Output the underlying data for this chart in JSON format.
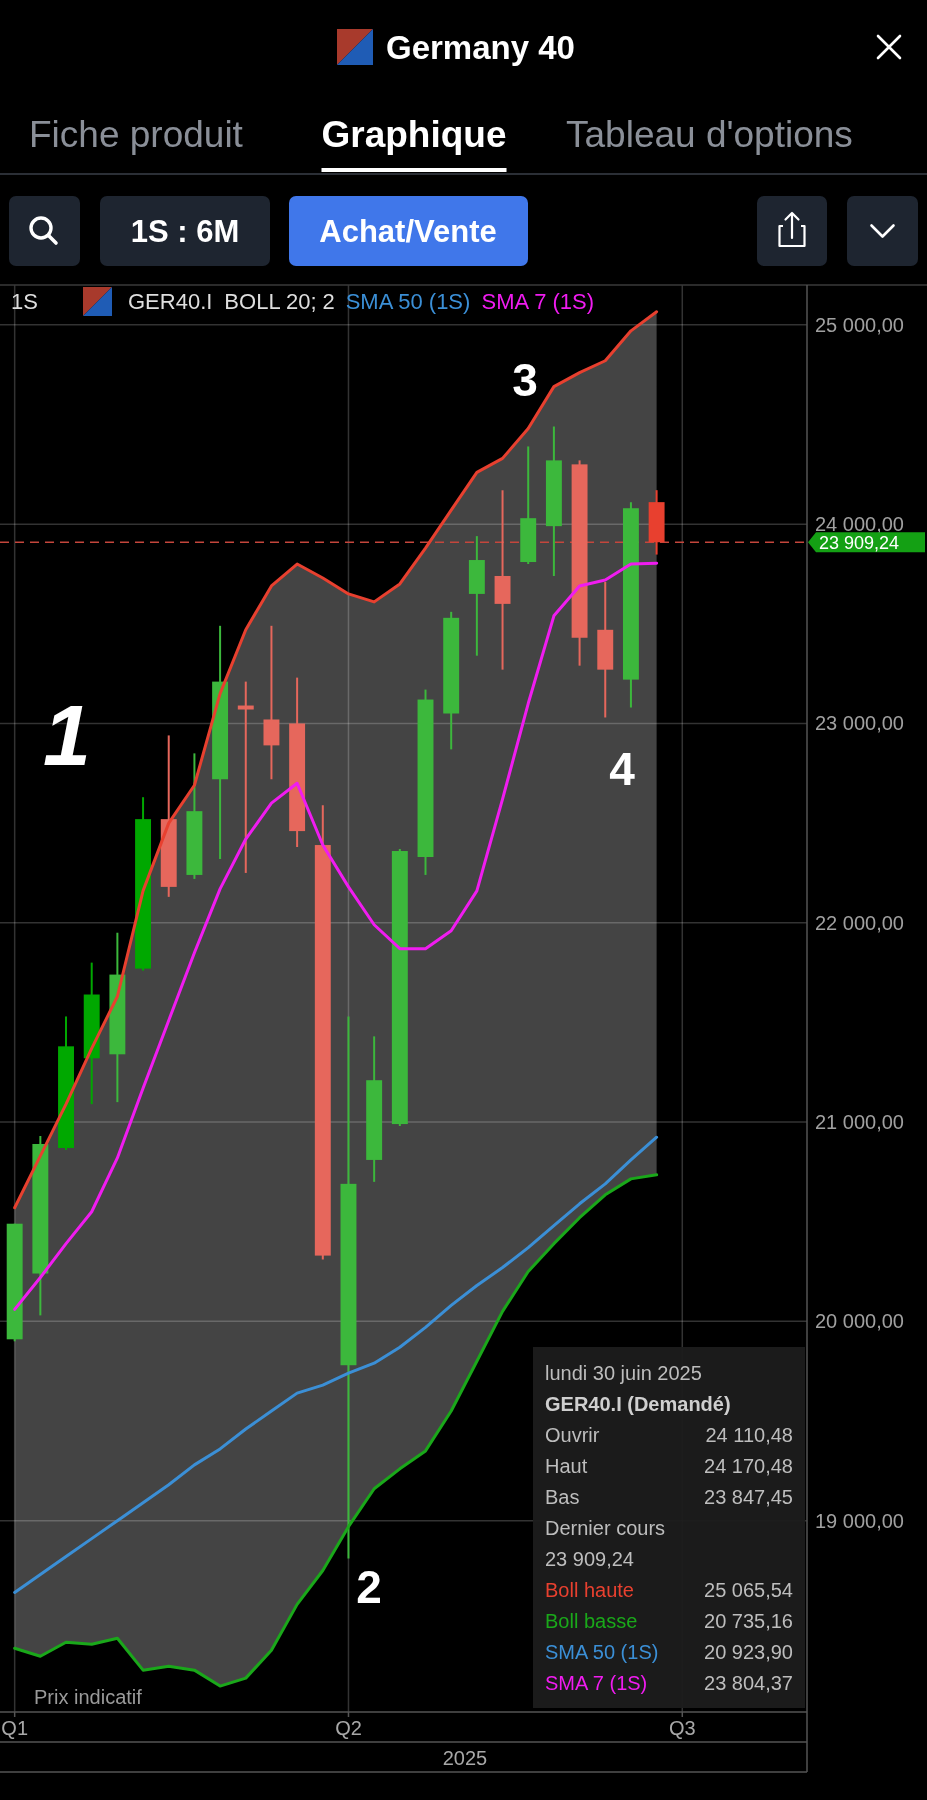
{
  "chart_data": {
    "type": "candlestick",
    "title": "Germany 40",
    "xlabel": "2025",
    "x": [
      "2025-01-06",
      "2025-01-13",
      "2025-01-20",
      "2025-01-27",
      "2025-02-03",
      "2025-02-10",
      "2025-02-17",
      "2025-02-24",
      "2025-03-03",
      "2025-03-10",
      "2025-03-17",
      "2025-03-24",
      "2025-03-31",
      "2025-04-07",
      "2025-04-14",
      "2025-04-21",
      "2025-04-28",
      "2025-05-05",
      "2025-05-12",
      "2025-05-19",
      "2025-05-26",
      "2025-06-02",
      "2025-06-09",
      "2025-06-16",
      "2025-06-23",
      "2025-06-30"
    ],
    "ohlc": [
      [
        19910,
        20490,
        19900,
        20490
      ],
      [
        20240,
        20930,
        20030,
        20890
      ],
      [
        20870,
        21530,
        20860,
        21380
      ],
      [
        21320,
        21800,
        21090,
        21640
      ],
      [
        21340,
        21950,
        21100,
        21740
      ],
      [
        21770,
        22630,
        21760,
        22520
      ],
      [
        22520,
        22940,
        22130,
        22180
      ],
      [
        22240,
        22850,
        22220,
        22560
      ],
      [
        22720,
        23490,
        22320,
        23210
      ],
      [
        23090,
        23210,
        22250,
        23070
      ],
      [
        23020,
        23490,
        22720,
        22890
      ],
      [
        23000,
        23230,
        22380,
        22460
      ],
      [
        22390,
        22590,
        20310,
        20330
      ],
      [
        19780,
        21530,
        18810,
        20690
      ],
      [
        20810,
        21430,
        20700,
        21210
      ],
      [
        20990,
        22370,
        20980,
        22360
      ],
      [
        22330,
        23170,
        22240,
        23120
      ],
      [
        23050,
        23560,
        22870,
        23530
      ],
      [
        23650,
        23940,
        23340,
        23820
      ],
      [
        23740,
        24170,
        23270,
        23600
      ],
      [
        23810,
        24390,
        23800,
        24030
      ],
      [
        23990,
        24490,
        23740,
        24320
      ],
      [
        24300,
        24320,
        23290,
        23430
      ],
      [
        23470,
        23710,
        23030,
        23270
      ],
      [
        23220,
        24110,
        23080,
        24080
      ],
      [
        24110.48,
        24170.48,
        23847.45,
        23909.24
      ]
    ],
    "colors": [
      "#3cb83c",
      "#3cb83c",
      "#00a800",
      "#00a800",
      "#3cb83c",
      "#00a800",
      "#e6675c",
      "#3cb83c",
      "#3cb83c",
      "#e6675c",
      "#e6675c",
      "#e6675c",
      "#e6675c",
      "#3cb83c",
      "#3cb83c",
      "#3cb83c",
      "#3cb83c",
      "#3cb83c",
      "#3cb83c",
      "#e6675c",
      "#3cb83c",
      "#3cb83c",
      "#e6675c",
      "#e6675c",
      "#3cb83c",
      "#e8402f"
    ],
    "series": [
      {
        "name": "Boll haute",
        "type": "line",
        "color": "#e8402f",
        "values": [
          20570,
          20830,
          21090,
          21370,
          21630,
          22160,
          22500,
          22690,
          23150,
          23470,
          23690,
          23800,
          23730,
          23650,
          23610,
          23700,
          23880,
          24070,
          24260,
          24330,
          24480,
          24690,
          24760,
          24820,
          24970,
          25065.54
        ],
        "lower": [
          18360,
          18320,
          18390,
          18380,
          18410,
          18250,
          18270,
          18250,
          18170,
          18210,
          18350,
          18580,
          18750,
          18970,
          19160,
          19260,
          19350,
          19550,
          19800,
          20050,
          20250,
          20390,
          20520,
          20635,
          20715,
          20735.16
        ],
        "upper": [
          20570,
          20830,
          21090,
          21370,
          21630,
          22160,
          22500,
          22690,
          23150,
          23470,
          23690,
          23800,
          23730,
          23650,
          23610,
          23700,
          23880,
          24070,
          24260,
          24330,
          24480,
          24690,
          24760,
          24820,
          24970,
          25065.54
        ]
      },
      {
        "name": "Boll basse",
        "type": "line",
        "color": "#1aa81a",
        "values": [
          18360,
          18320,
          18390,
          18380,
          18410,
          18250,
          18270,
          18250,
          18170,
          18210,
          18350,
          18580,
          18750,
          18970,
          19160,
          19260,
          19350,
          19550,
          19800,
          20050,
          20250,
          20390,
          20520,
          20635,
          20715,
          20735.16
        ]
      },
      {
        "name": "SMA 50 (1S)",
        "type": "line",
        "color": "#3b8fd6",
        "values": [
          18640,
          18730,
          18820,
          18910,
          19000,
          19090,
          19180,
          19280,
          19360,
          19460,
          19550,
          19640,
          19680,
          19740,
          19790,
          19870,
          19970,
          20080,
          20180,
          20270,
          20370,
          20480,
          20590,
          20690,
          20810,
          20923.9
        ]
      },
      {
        "name": "SMA 7 (1S)",
        "type": "line",
        "color": "#f01cf0",
        "values": [
          20060,
          20220,
          20390,
          20550,
          20820,
          21170,
          21510,
          21850,
          22170,
          22420,
          22600,
          22700,
          22390,
          22180,
          21990,
          21870,
          21870,
          21960,
          22160,
          22620,
          23100,
          23540,
          23690,
          23720,
          23800,
          23804.37
        ]
      }
    ],
    "xlim": [
      "2025-01-02",
      "2025-08-10"
    ],
    "xticks": [
      {
        "value": "2025-01-06",
        "label": "Q1"
      },
      {
        "value": "2025-04-07",
        "label": "Q2"
      },
      {
        "value": "2025-07-07",
        "label": "Q3"
      }
    ],
    "ylim": [
      18040,
      25200
    ],
    "yticks": [
      {
        "value": 19000,
        "label": "19 000,00"
      },
      {
        "value": 20000,
        "label": "20 000,00"
      },
      {
        "value": 21000,
        "label": "21 000,00"
      },
      {
        "value": 22000,
        "label": "22 000,00"
      },
      {
        "value": 23000,
        "label": "23 000,00"
      },
      {
        "value": 24000,
        "label": "24 000,00"
      },
      {
        "value": 25000,
        "label": "25 000,00"
      }
    ],
    "grid": true,
    "legend": "bottom right",
    "ref_lines": [
      {
        "axis": "y",
        "value": 23909.24,
        "label": "23 909,24",
        "color": "#c4463c",
        "line_style": "dashed"
      }
    ],
    "annotations": [
      "Fiche produit",
      "Graphique",
      "Tableau d'options",
      "1S : 6M",
      "Achat/Vente",
      "1S",
      "GER40.I",
      "BOLL 20; 2",
      "SMA 50 (1S)",
      "SMA 7 (1S)",
      "Prix indicatif",
      "1",
      "2",
      "3",
      "4",
      "lundi 30 juin 2025",
      "GER40.I (Demandé)",
      "Ouvrir",
      "24 110,48",
      "Haut",
      "24 170,48",
      "Bas",
      "23 847,45",
      "Dernier cours",
      "23 909,24",
      "25 065,54",
      "20 735,16",
      "20 923,90",
      "23 804,37"
    ]
  }
}
